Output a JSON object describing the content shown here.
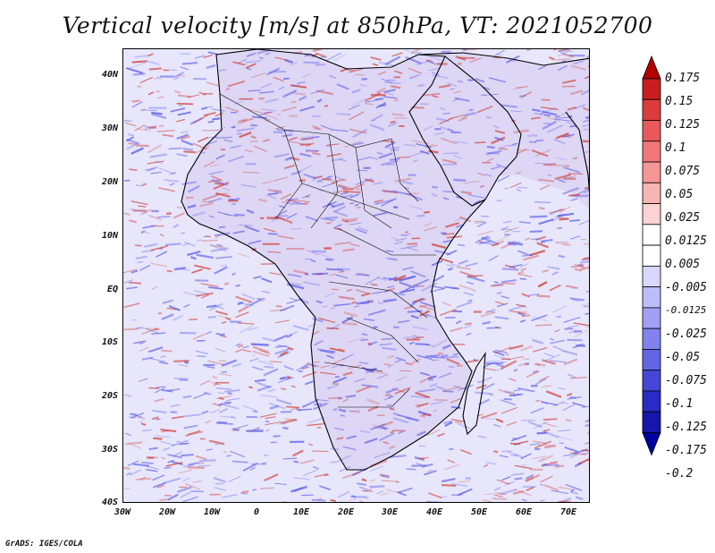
{
  "title": "Vertical velocity [m/s] at 850hPa, VT: 2021052700",
  "credit": "GrADS: IGES/COLA",
  "map": {
    "lon_range": [
      -30,
      75
    ],
    "lat_range": [
      -40,
      45
    ],
    "x_ticks": [
      "30W",
      "20W",
      "10W",
      "0",
      "10E",
      "20E",
      "30E",
      "40E",
      "50E",
      "60E",
      "70E"
    ],
    "y_ticks": [
      "40N",
      "30N",
      "20N",
      "10N",
      "EQ",
      "10S",
      "20S",
      "30S",
      "40S"
    ],
    "field_colors": {
      "ocean_background": "#e7e6fb",
      "land_background": "#ddd6f4",
      "upward": "#d0403a",
      "downward": "#5e5ee8",
      "coastline": "#000000"
    }
  },
  "colorbar": {
    "labels": [
      "0.175",
      "0.15",
      "0.125",
      "0.1",
      "0.075",
      "0.05",
      "0.025",
      "0.0125",
      "0.005",
      "-0.005",
      "-0.0125",
      "-0.025",
      "-0.05",
      "-0.075",
      "-0.1",
      "-0.125",
      "-0.175",
      "-0.2"
    ],
    "colors": [
      "#b40000",
      "#c81e1e",
      "#dc3c3c",
      "#e85a5a",
      "#f07878",
      "#f59696",
      "#f9b4b4",
      "#fcd2d2",
      "#ffffff",
      "#ffffff",
      "#d8d8fc",
      "#bcbcfa",
      "#a0a0f5",
      "#8282ee",
      "#6464e6",
      "#4646d8",
      "#2a2ac4",
      "#1616aa",
      "#0000a0"
    ]
  }
}
